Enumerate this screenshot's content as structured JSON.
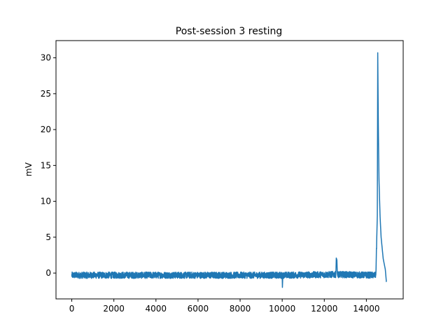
{
  "chart_data": {
    "type": "line",
    "title": "Post-session 3 resting",
    "xlabel": "",
    "ylabel": "mV",
    "xlim": [
      -750,
      15750
    ],
    "ylim": [
      -3.6,
      32.4
    ],
    "x_ticks": [
      0,
      2000,
      4000,
      6000,
      8000,
      10000,
      12000,
      14000
    ],
    "y_ticks": [
      0,
      5,
      10,
      15,
      20,
      25,
      30
    ],
    "grid": false,
    "legend": "none",
    "series": [
      {
        "color": "#1f77b4",
        "noise_amplitude": 0.45,
        "baseline": -0.3,
        "x_range": [
          0,
          14950
        ],
        "points": [
          [
            0,
            -0.3
          ],
          [
            10000,
            -0.3
          ],
          [
            10010,
            -2.0
          ],
          [
            10030,
            -0.3
          ],
          [
            12550,
            -0.2
          ],
          [
            12570,
            2.1
          ],
          [
            12600,
            1.8
          ],
          [
            12620,
            -0.2
          ],
          [
            14450,
            -0.3
          ],
          [
            14520,
            8.0
          ],
          [
            14540,
            30.7
          ],
          [
            14570,
            20.0
          ],
          [
            14600,
            13.0
          ],
          [
            14650,
            8.0
          ],
          [
            14700,
            5.0
          ],
          [
            14800,
            2.0
          ],
          [
            14900,
            0.5
          ],
          [
            14950,
            -1.2
          ]
        ]
      }
    ]
  }
}
